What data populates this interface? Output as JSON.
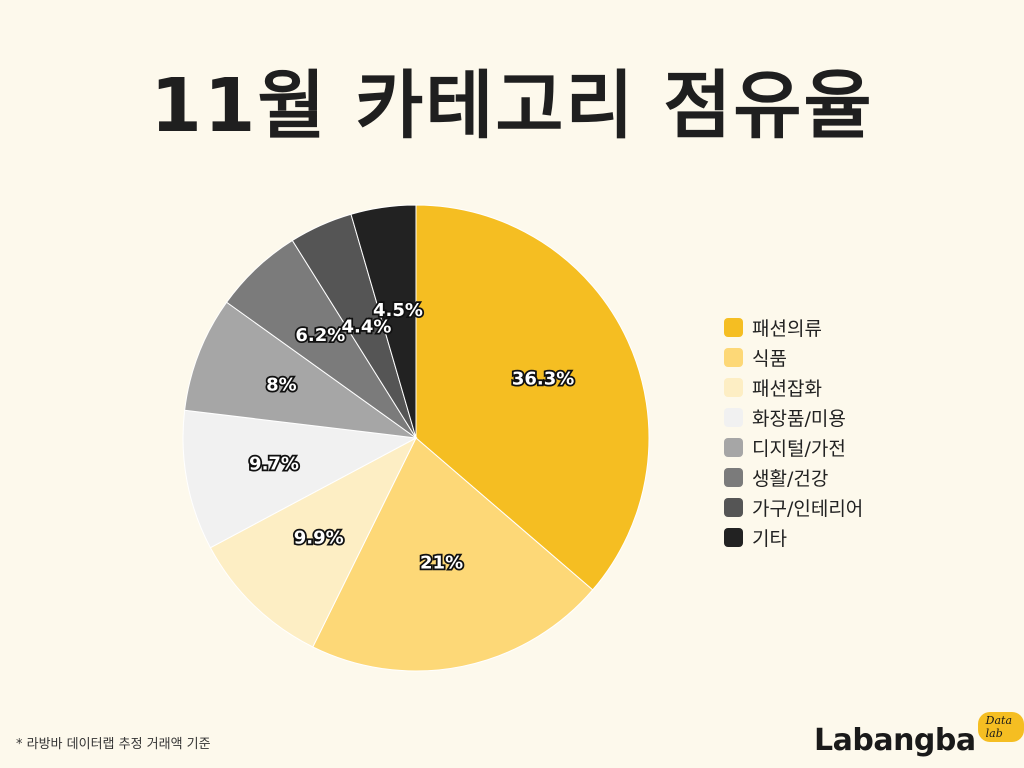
{
  "chart_data": {
    "type": "pie",
    "title": "11월 카테고리 점유율",
    "categories": [
      "패션의류",
      "식품",
      "패션잡화",
      "화장품/미용",
      "디지털/가전",
      "생활/건강",
      "가구/인테리어",
      "기타"
    ],
    "values": [
      36.3,
      21,
      9.9,
      9.7,
      8,
      6.2,
      4.4,
      4.5
    ],
    "value_labels": [
      "36.3%",
      "21%",
      "9.9%",
      "9.7%",
      "8%",
      "6.2%",
      "4.4%",
      "4.5%"
    ],
    "colors": [
      "#f5be22",
      "#fdd877",
      "#fdeec4",
      "#f1f1f1",
      "#a6a6a6",
      "#7b7b7b",
      "#555555",
      "#222222"
    ],
    "legend_position": "right"
  },
  "footnote": "* 라방바 데이터랩 추정 거래액 기준",
  "logo": {
    "main": "Labangba",
    "sub": "Data lab"
  }
}
